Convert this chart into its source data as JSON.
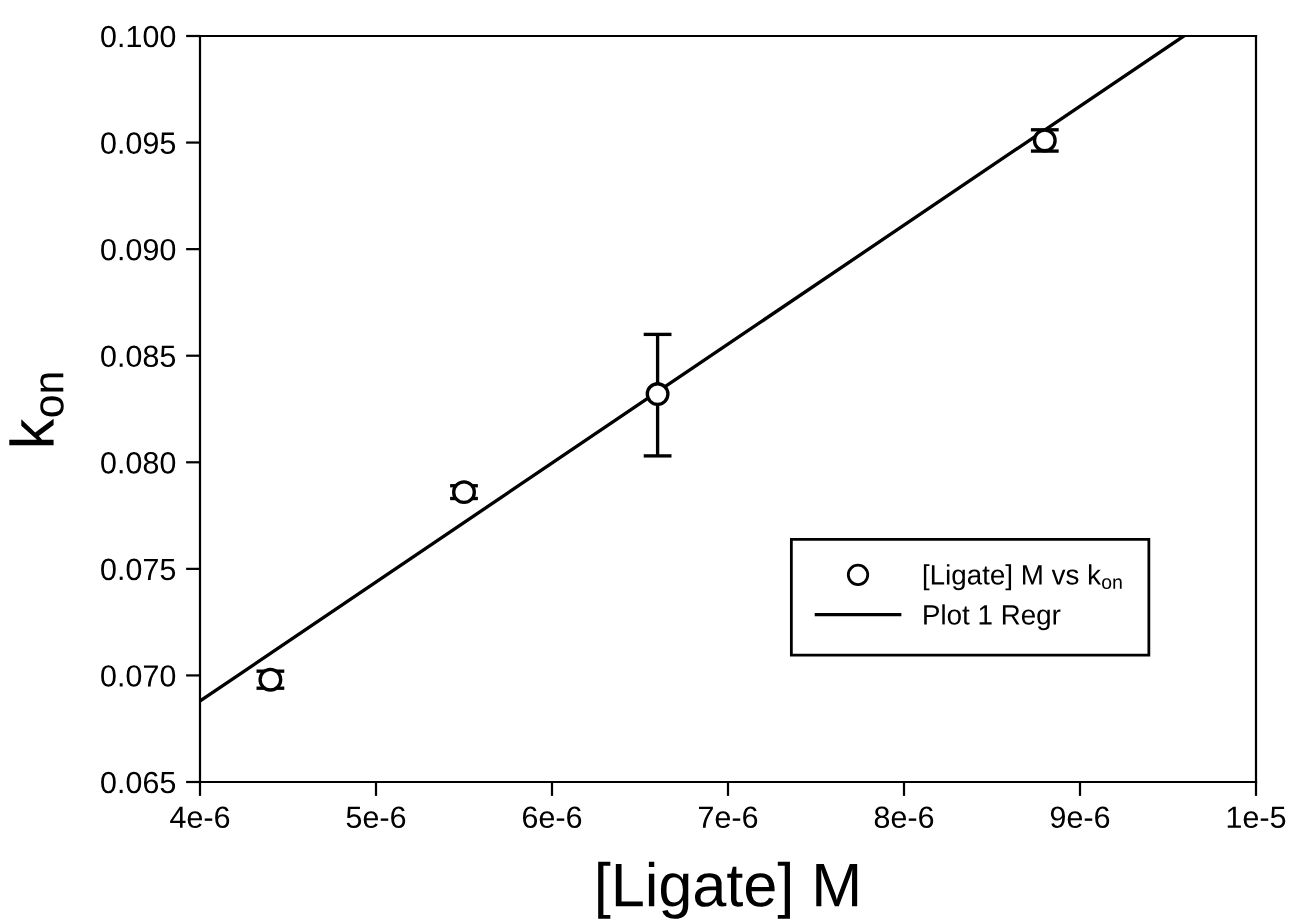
{
  "chart_data": {
    "type": "scatter",
    "xlabel": "[Ligate] M",
    "ylabel": "k$_{on}$",
    "xlim": [
      4e-06,
      1e-05
    ],
    "ylim": [
      0.065,
      0.1
    ],
    "xticks": [
      {
        "value": 4e-06,
        "label": "4e-6"
      },
      {
        "value": 5e-06,
        "label": "5e-6"
      },
      {
        "value": 6e-06,
        "label": "6e-6"
      },
      {
        "value": 7e-06,
        "label": "7e-6"
      },
      {
        "value": 8e-06,
        "label": "8e-6"
      },
      {
        "value": 9e-06,
        "label": "9e-6"
      },
      {
        "value": 1e-05,
        "label": "1e-5"
      }
    ],
    "yticks": [
      {
        "value": 0.065,
        "label": "0.065"
      },
      {
        "value": 0.07,
        "label": "0.070"
      },
      {
        "value": 0.075,
        "label": "0.075"
      },
      {
        "value": 0.08,
        "label": "0.080"
      },
      {
        "value": 0.085,
        "label": "0.085"
      },
      {
        "value": 0.09,
        "label": "0.090"
      },
      {
        "value": 0.095,
        "label": "0.095"
      },
      {
        "value": 0.1,
        "label": "0.100"
      }
    ],
    "grid": false,
    "legend": "bottom right",
    "series": [
      {
        "name": "[Ligate] M vs k$_{on}$",
        "color": "#000000",
        "marker": "circle",
        "x": [
          4.4e-06,
          5.5e-06,
          6.6e-06,
          8.8e-06
        ],
        "values": [
          0.0698,
          0.0786,
          0.0832,
          0.0951
        ],
        "errors": [
          0.0004,
          0.0003,
          [
            0.0803,
            0.086
          ],
          0.0005
        ]
      },
      {
        "type": "line",
        "name": "Plot 1 Regr",
        "color": "#000000",
        "marker": "none",
        "line_style": "solid",
        "x": [
          4e-06,
          9.59e-06
        ],
        "values": [
          0.0688,
          0.1
        ]
      }
    ]
  }
}
